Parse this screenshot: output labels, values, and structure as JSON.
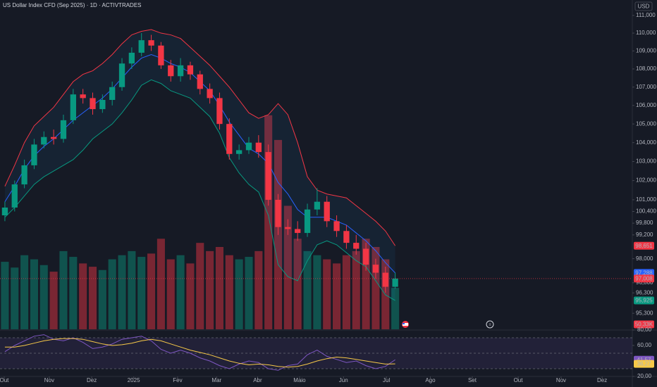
{
  "chart_data": {
    "type": "candlestick",
    "title": "US Dollar Index CFD (Sep 2025) · 1D · ACTIVTRADES",
    "currency": "USD",
    "log_scale": true,
    "grid": false,
    "x": [
      0.5,
      1.5,
      2.5,
      3.5,
      4.5,
      5.5,
      6.5,
      7.5,
      8.5,
      9.5,
      10.5,
      11.5,
      12.5,
      13.5,
      14.5,
      15.5,
      16.5,
      17.5,
      18.5,
      19.5,
      20.5,
      21.5,
      22.5,
      23.5,
      24.5,
      25.5,
      26.5,
      27.5,
      28.5,
      29.5,
      30.5,
      31.5,
      32.5,
      33.5,
      34.5,
      35.5,
      36.5,
      37.5,
      38.5,
      39.5,
      40.5
    ],
    "xlim": [
      0,
      64.8
    ],
    "xticks": [
      {
        "value": 0.43,
        "label": "Out"
      },
      {
        "value": 5.05,
        "label": "Nov"
      },
      {
        "value": 9.4,
        "label": "Dez"
      },
      {
        "value": 13.7,
        "label": "2025"
      },
      {
        "value": 18.2,
        "label": "Fev"
      },
      {
        "value": 22.2,
        "label": "Mar"
      },
      {
        "value": 26.4,
        "label": "Abr"
      },
      {
        "value": 30.7,
        "label": "Maio"
      },
      {
        "value": 35.2,
        "label": "Jun"
      },
      {
        "value": 39.6,
        "label": "Jul"
      },
      {
        "value": 44.1,
        "label": "Ago"
      },
      {
        "value": 48.4,
        "label": "Set"
      },
      {
        "value": 53.1,
        "label": "Out"
      },
      {
        "value": 57.5,
        "label": "Nov"
      },
      {
        "value": 61.7,
        "label": "Dez"
      }
    ],
    "ylim": [
      94.52,
      111.88
    ],
    "yticks": [
      {
        "value": 111,
        "label": "111,000"
      },
      {
        "value": 110,
        "label": "110,000"
      },
      {
        "value": 109,
        "label": "109,000"
      },
      {
        "value": 108,
        "label": "108,000"
      },
      {
        "value": 107,
        "label": "107,000"
      },
      {
        "value": 106,
        "label": "106,000"
      },
      {
        "value": 105,
        "label": "105,000"
      },
      {
        "value": 104,
        "label": "104,000"
      },
      {
        "value": 103,
        "label": "103,000"
      },
      {
        "value": 102,
        "label": "102,000"
      },
      {
        "value": 101,
        "label": "101,000"
      },
      {
        "value": 100.4,
        "label": "100,400"
      },
      {
        "value": 99.8,
        "label": "99,800"
      },
      {
        "value": 99.2,
        "label": "99,200"
      },
      {
        "value": 98,
        "label": "98,000"
      },
      {
        "value": 96.8,
        "label": "96,800"
      },
      {
        "value": 96.3,
        "label": "96,300"
      },
      {
        "value": 95.3,
        "label": "95,300"
      }
    ],
    "price": {
      "open": [
        100.2,
        100.6,
        101.8,
        102.8,
        103.9,
        104.3,
        104.2,
        105.2,
        106.6,
        106.4,
        105.8,
        106.3,
        107.0,
        108.3,
        108.9,
        109.6,
        109.3,
        108.2,
        107.6,
        108.2,
        107.7,
        106.9,
        106.4,
        105.0,
        103.4,
        103.6,
        104.0,
        103.5,
        101.0,
        99.6,
        99.5,
        99.3,
        100.5,
        100.9,
        99.9,
        99.4,
        98.8,
        98.5,
        97.7,
        97.3,
        96.6
      ],
      "high": [
        100.9,
        102.0,
        103.1,
        104.2,
        104.6,
        104.7,
        105.5,
        106.9,
        106.9,
        106.7,
        106.6,
        107.3,
        108.6,
        109.2,
        110.0,
        109.9,
        109.5,
        108.5,
        108.6,
        108.4,
        107.9,
        107.2,
        106.7,
        105.3,
        103.9,
        104.3,
        104.4,
        103.9,
        101.3,
        100.0,
        99.9,
        100.8,
        101.6,
        101.2,
        100.2,
        99.7,
        99.2,
        98.8,
        98.0,
        97.6,
        97.3
      ],
      "low": [
        99.9,
        100.4,
        101.6,
        102.6,
        103.7,
        103.9,
        104.0,
        105.0,
        106.1,
        105.5,
        105.6,
        106.0,
        106.8,
        108.0,
        108.7,
        109.0,
        108.0,
        107.3,
        107.3,
        107.4,
        106.6,
        106.1,
        104.7,
        103.1,
        103.1,
        103.4,
        103.2,
        100.7,
        99.2,
        99.2,
        98.9,
        99.1,
        100.2,
        99.6,
        99.1,
        98.5,
        98.2,
        97.4,
        97.0,
        96.3,
        96.5
      ],
      "close": [
        100.6,
        101.8,
        102.8,
        103.9,
        104.3,
        104.2,
        105.2,
        106.6,
        106.4,
        105.8,
        106.3,
        107.0,
        108.3,
        108.9,
        109.6,
        109.3,
        108.2,
        107.6,
        108.2,
        107.7,
        106.9,
        106.4,
        105.0,
        103.4,
        103.6,
        104.0,
        103.5,
        101.0,
        99.6,
        99.5,
        99.3,
        100.5,
        100.9,
        99.9,
        99.4,
        98.8,
        98.5,
        97.7,
        97.3,
        96.6,
        97.008
      ],
      "up_color": "#089981",
      "down_color": "#f23645",
      "last_label": "97,008"
    },
    "bands": [
      {
        "color": "#f23645",
        "values": [
          101.7,
          102.8,
          104.0,
          104.9,
          105.4,
          105.9,
          106.6,
          107.3,
          107.7,
          107.9,
          108.3,
          108.8,
          109.4,
          109.9,
          110.1,
          110.2,
          110.0,
          109.9,
          109.7,
          109.2,
          108.7,
          108.2,
          107.6,
          107.0,
          106.3,
          105.6,
          105.3,
          105.5,
          106.1,
          105.5,
          104.0,
          102.2,
          101.5,
          101.3,
          101.2,
          101.1,
          100.7,
          100.3,
          99.9,
          99.4,
          98.651
        ],
        "last_label": "98,651"
      },
      {
        "color": "#2962ff",
        "values": [
          100.9,
          101.7,
          102.6,
          103.3,
          103.8,
          104.2,
          104.7,
          105.2,
          105.6,
          106.0,
          106.4,
          106.9,
          107.5,
          108.1,
          108.6,
          108.8,
          108.6,
          108.3,
          108.1,
          107.8,
          107.3,
          106.8,
          106.0,
          105.1,
          104.4,
          103.7,
          103.4,
          102.9,
          101.9,
          101.3,
          100.5,
          100.1,
          100.1,
          100.1,
          99.9,
          99.7,
          99.3,
          98.9,
          98.4,
          97.8,
          97.288
        ],
        "last_label": "97,288"
      },
      {
        "color": "#089981",
        "values": [
          100.1,
          100.6,
          101.2,
          101.8,
          102.2,
          102.5,
          102.8,
          103.1,
          103.6,
          104.2,
          104.6,
          105.0,
          105.6,
          106.3,
          107.1,
          107.4,
          107.2,
          106.8,
          106.6,
          106.4,
          105.9,
          105.4,
          104.5,
          103.2,
          102.4,
          101.8,
          101.4,
          100.2,
          97.7,
          97.1,
          96.9,
          97.9,
          98.7,
          98.9,
          98.7,
          98.3,
          97.9,
          97.6,
          96.9,
          96.2,
          95.925
        ],
        "last_label": "95,925"
      }
    ],
    "volume": {
      "values": [
        82000,
        75000,
        90000,
        85000,
        78000,
        70000,
        95000,
        88000,
        80000,
        76000,
        72000,
        85000,
        90000,
        95000,
        88000,
        92000,
        110000,
        85000,
        90000,
        80000,
        105000,
        95000,
        100000,
        90000,
        85000,
        88000,
        95000,
        260000,
        230000,
        150000,
        110000,
        95000,
        90000,
        85000,
        80000,
        90000,
        95000,
        110000,
        100000,
        85000,
        50330
      ],
      "ylim": [
        0,
        400000
      ],
      "last_label": "50,33K"
    },
    "rsi": {
      "ylim": [
        20,
        80
      ],
      "yticks": [
        {
          "value": 80,
          "label": "80,00"
        },
        {
          "value": 60,
          "label": "60,00"
        },
        {
          "value": 20,
          "label": "20,00"
        }
      ],
      "levels": [
        70,
        50,
        30
      ],
      "series": [
        {
          "color": "#7e57c2",
          "values": [
            52,
            60,
            66,
            72,
            74,
            68,
            66,
            70,
            64,
            56,
            58,
            62,
            68,
            70,
            72,
            66,
            55,
            50,
            54,
            50,
            44,
            40,
            34,
            30,
            36,
            40,
            38,
            30,
            28,
            34,
            36,
            48,
            54,
            46,
            42,
            38,
            40,
            34,
            30,
            33,
            41.57
          ],
          "last_label": "41,57"
        },
        {
          "color": "#f7c948",
          "values": [
            58,
            58,
            60,
            63,
            66,
            68,
            69,
            69,
            68,
            65,
            62,
            60,
            61,
            63,
            66,
            68,
            66,
            62,
            58,
            54,
            51,
            48,
            44,
            40,
            37,
            35,
            36,
            35,
            33,
            32,
            33,
            36,
            40,
            43,
            45,
            44,
            42,
            40,
            38,
            36,
            36.27
          ],
          "last_label": "36,27"
        }
      ]
    }
  }
}
